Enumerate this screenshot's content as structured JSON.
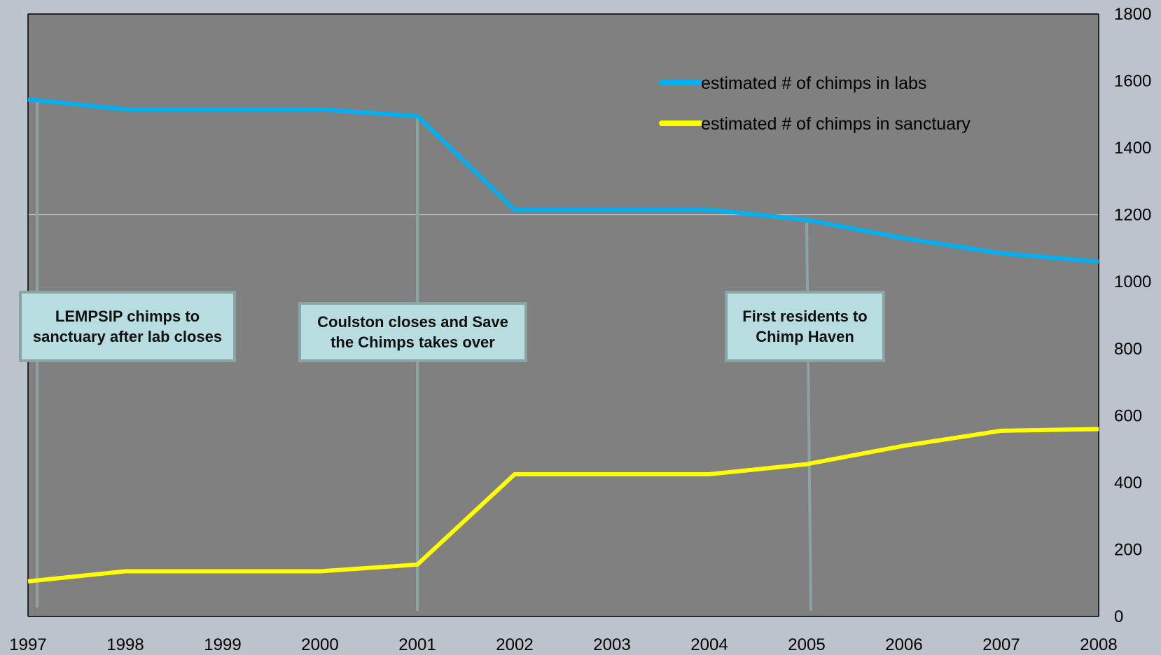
{
  "chart_data": {
    "type": "line",
    "x": [
      "1997",
      "1998",
      "1999",
      "2000",
      "2001",
      "2002",
      "2003",
      "2004",
      "2005",
      "2006",
      "2007",
      "2008"
    ],
    "series": [
      {
        "name": "estimated # of chimps in labs",
        "color": "#00b0f0",
        "values": [
          1545,
          1515,
          1515,
          1515,
          1495,
          1215,
          1215,
          1215,
          1185,
          1130,
          1085,
          1060
        ]
      },
      {
        "name": "estimated # of chimps in sanctuary",
        "color": "#ffff00",
        "values": [
          105,
          135,
          135,
          135,
          155,
          425,
          425,
          425,
          455,
          510,
          555,
          560
        ]
      }
    ],
    "ylim": [
      0,
      1800
    ],
    "yticks": [
      "0",
      "200",
      "400",
      "600",
      "800",
      "1000",
      "1200",
      "1400",
      "1600",
      "1800"
    ],
    "y_axis_side": "right",
    "gridline_at": 1200,
    "legend_position": "top-right",
    "plot_background": "#808080",
    "annotations": [
      {
        "text": "LEMPSIP  chimps to\nsanctuary after lab closes",
        "year": "1997"
      },
      {
        "text": "Coulston closes and Save\nthe Chimps takes over",
        "year": "2001"
      },
      {
        "text": "First residents to\nChimp Haven",
        "year": "2005"
      }
    ]
  }
}
